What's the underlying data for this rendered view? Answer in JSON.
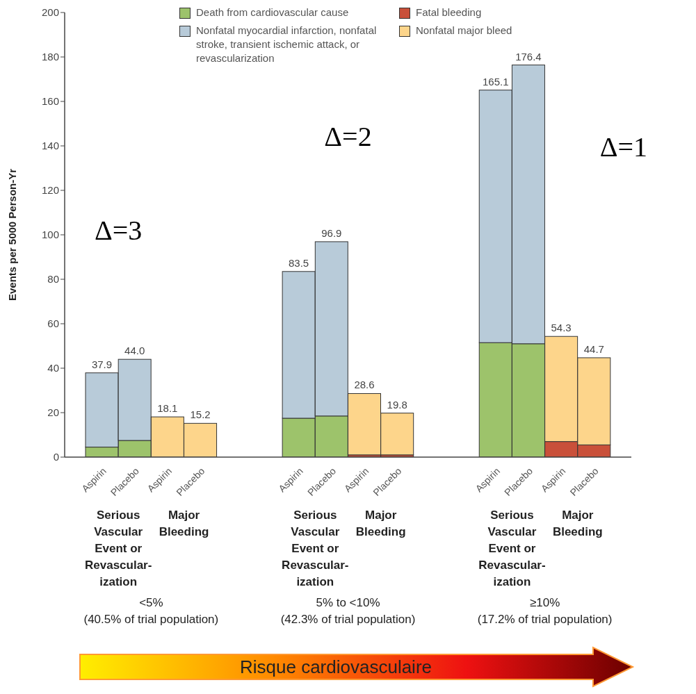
{
  "chart_data": {
    "type": "bar",
    "stacked": true,
    "ylabel": "Events per 5000 Person-Yr",
    "categories": [
      "Aspirin",
      "Placebo",
      "Aspirin",
      "Placebo",
      null,
      null,
      "Aspirin",
      "Placebo",
      "Aspirin",
      "Placebo",
      null,
      null,
      "Aspirin",
      "Placebo",
      "Aspirin",
      "Placebo"
    ],
    "series": [
      {
        "name": "Death from cardiovascular cause",
        "color": "#9dc36b",
        "values": [
          4.5,
          7.5,
          null,
          null,
          null,
          null,
          17.5,
          18.5,
          null,
          null,
          null,
          null,
          51.5,
          51.0,
          null,
          null
        ]
      },
      {
        "name": "Nonfatal myocardial infarction, nonfatal stroke, transient ischemic attack, or revascularization",
        "color": "#b8cbd9",
        "values": [
          33.4,
          36.5,
          null,
          null,
          null,
          null,
          66.0,
          78.4,
          null,
          null,
          null,
          null,
          113.6,
          125.4,
          null,
          null
        ]
      },
      {
        "name": "Fatal bleeding",
        "color": "#c9503a",
        "values": [
          null,
          null,
          null,
          null,
          null,
          null,
          null,
          null,
          1.0,
          1.0,
          null,
          null,
          null,
          null,
          7.0,
          5.5
        ]
      },
      {
        "name": "Nonfatal major bleed",
        "color": "#fdd58b",
        "values": [
          null,
          null,
          18.1,
          15.2,
          null,
          null,
          null,
          null,
          27.6,
          18.8,
          null,
          null,
          null,
          null,
          47.3,
          39.2
        ]
      }
    ],
    "totals": [
      "37.9",
      "44.0",
      "18.1",
      "15.2",
      null,
      null,
      "83.5",
      "96.9",
      "28.6",
      "19.8",
      null,
      null,
      "165.1",
      "176.4",
      "54.3",
      "44.7"
    ],
    "ylim": [
      0,
      200
    ],
    "yticks": [
      0,
      20,
      40,
      60,
      80,
      100,
      120,
      140,
      160,
      180,
      200
    ],
    "grid": false,
    "legend": "top",
    "annotations": [
      "Δ=3",
      "Δ=2",
      "Δ=1",
      "Serious Vascular Event or Revascular-ization",
      "Major Bleeding",
      "<5%\n(40.5% of trial population)",
      "Serious Vascular Event or Revascular-ization",
      "Major Bleeding",
      "5% to <10%\n(42.3% of trial population)",
      "Serious Vascular Event or Revascular-ization",
      "Major Bleeding",
      "≥10%\n(17.2% of trial population)",
      "Risque cardiovasculaire"
    ]
  }
}
